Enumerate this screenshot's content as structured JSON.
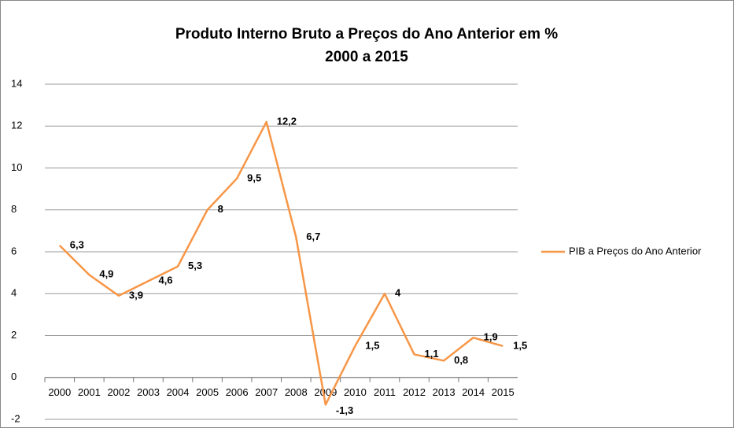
{
  "chart_data": {
    "type": "line",
    "title": [
      "Produto Interno Bruto a Preços do Ano Anterior em %",
      "2000 a 2015"
    ],
    "categories": [
      "2000",
      "2001",
      "2002",
      "2003",
      "2004",
      "2005",
      "2006",
      "2007",
      "2008",
      "2009",
      "2010",
      "2011",
      "2012",
      "2013",
      "2014",
      "2015"
    ],
    "series": [
      {
        "name": "PIB a Preços do Ano Anterior",
        "color": "#f79646",
        "values": [
          6.3,
          4.9,
          3.9,
          4.6,
          5.3,
          8,
          9.5,
          12.2,
          6.7,
          -1.3,
          1.5,
          4,
          1.1,
          0.8,
          1.9,
          1.5
        ],
        "value_labels": [
          "6,3",
          "4,9",
          "3,9",
          "4,6",
          "5,3",
          "8",
          "9,5",
          "12,2",
          "6,7",
          "-1,3",
          "1,5",
          "4",
          "1,1",
          "0,8",
          "1,9",
          "1,5"
        ]
      }
    ],
    "ylim": [
      -2,
      14
    ],
    "yticks": [
      -2,
      0,
      2,
      4,
      6,
      8,
      10,
      12,
      14
    ],
    "grid": true,
    "legend": "right"
  }
}
